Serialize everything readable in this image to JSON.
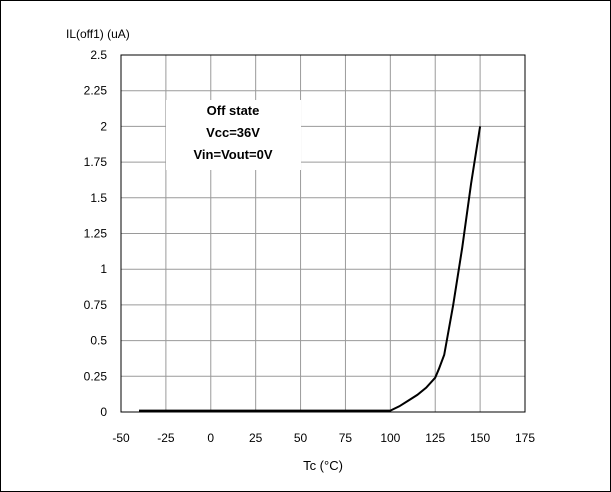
{
  "chart_data": {
    "type": "line",
    "title": "",
    "xlabel": "Tc (°C)",
    "ylabel": "IL(off1) (uA)",
    "xlim": [
      -50,
      175
    ],
    "ylim": [
      0,
      2.5
    ],
    "x_ticks": [
      "-50",
      "-25",
      "0",
      "25",
      "50",
      "75",
      "100",
      "125",
      "150",
      "175"
    ],
    "y_ticks": [
      "0",
      "0.25",
      "0.5",
      "0.75",
      "1",
      "1.25",
      "1.5",
      "1.75",
      "2",
      "2.25",
      "2.5"
    ],
    "grid": true,
    "annotation": [
      "Off state",
      "Vcc=36V",
      "Vin=Vout=0V"
    ],
    "series": [
      {
        "color": "#000000",
        "x": [
          -40,
          0,
          50,
          100,
          105,
          110,
          115,
          120,
          125,
          127,
          130,
          135,
          140,
          145,
          150
        ],
        "y": [
          0.01,
          0.01,
          0.01,
          0.01,
          0.04,
          0.08,
          0.12,
          0.17,
          0.24,
          0.3,
          0.4,
          0.75,
          1.15,
          1.6,
          2.0
        ]
      }
    ]
  }
}
